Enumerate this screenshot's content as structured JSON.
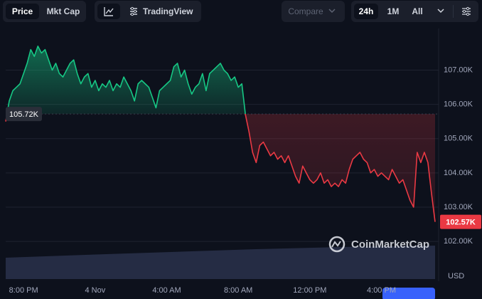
{
  "toolbar": {
    "price": "Price",
    "mkt_cap": "Mkt Cap",
    "tradingview": "TradingView",
    "compare": "Compare",
    "ranges": [
      "24h",
      "1M",
      "All"
    ]
  },
  "chart_data": {
    "type": "line",
    "categories": [
      null,
      null,
      null,
      null,
      null,
      "8:00 PM",
      null,
      null,
      null,
      null,
      null,
      null,
      null,
      null,
      null,
      null,
      null,
      null,
      null,
      null,
      null,
      null,
      null,
      null,
      null,
      "4 Nov",
      null,
      null,
      null,
      null,
      null,
      null,
      null,
      null,
      null,
      null,
      null,
      null,
      null,
      null,
      null,
      null,
      null,
      null,
      null,
      "4:00 AM",
      null,
      null,
      null,
      null,
      null,
      null,
      null,
      null,
      null,
      null,
      null,
      null,
      null,
      null,
      null,
      null,
      null,
      null,
      null,
      "8:00 AM",
      null,
      null,
      null,
      null,
      null,
      null,
      null,
      null,
      null,
      null,
      null,
      null,
      null,
      null,
      null,
      null,
      null,
      null,
      null,
      "12:00 PM",
      null,
      null,
      null,
      null,
      null,
      null,
      null,
      null,
      null,
      null,
      null,
      null,
      null,
      null,
      null,
      null,
      null,
      null,
      null,
      "4:00 PM",
      null,
      null,
      null,
      null,
      null,
      null,
      null,
      null,
      null,
      null,
      null,
      null,
      null,
      null,
      null
    ],
    "values": [
      105.5,
      106.1,
      106.4,
      106.5,
      106.6,
      106.9,
      107.2,
      107.6,
      107.4,
      107.7,
      107.5,
      107.6,
      107.3,
      107.0,
      107.2,
      106.9,
      106.8,
      107.0,
      107.2,
      107.3,
      106.9,
      106.6,
      106.8,
      106.9,
      106.5,
      106.7,
      106.4,
      106.6,
      106.5,
      106.7,
      106.4,
      106.6,
      106.5,
      106.8,
      106.6,
      106.4,
      106.1,
      106.6,
      106.7,
      106.6,
      106.5,
      106.2,
      105.9,
      106.4,
      106.5,
      106.6,
      106.7,
      107.1,
      107.2,
      106.8,
      107.0,
      106.6,
      106.3,
      106.5,
      106.6,
      106.9,
      106.4,
      106.9,
      107.0,
      107.1,
      107.2,
      107.0,
      106.9,
      106.7,
      106.8,
      106.5,
      106.6,
      105.7,
      105.2,
      104.6,
      104.3,
      104.8,
      104.9,
      104.7,
      104.5,
      104.6,
      104.4,
      104.5,
      104.3,
      104.5,
      104.2,
      103.9,
      103.7,
      104.2,
      104.0,
      103.8,
      103.7,
      103.8,
      104.0,
      103.7,
      103.8,
      103.6,
      103.7,
      103.6,
      103.8,
      103.7,
      104.1,
      104.4,
      104.5,
      104.6,
      104.4,
      104.3,
      104.0,
      104.1,
      103.9,
      104.0,
      103.9,
      103.8,
      104.1,
      103.9,
      103.7,
      103.8,
      103.5,
      103.2,
      103.0,
      104.6,
      104.3,
      104.6,
      104.3,
      103.4,
      102.57
    ],
    "up_color": "#16c784",
    "down_color": "#ea3943",
    "ylim": [
      100.9,
      108.05
    ],
    "yticks": [
      {
        "value": 102,
        "label": "102.00K"
      },
      {
        "value": 103,
        "label": "103.00K"
      },
      {
        "value": 104,
        "label": "104.00K"
      },
      {
        "value": 105,
        "label": "105.00K"
      },
      {
        "value": 106,
        "label": "106.00K"
      },
      {
        "value": 107,
        "label": "107.00K"
      }
    ],
    "y_label": "USD",
    "grid": true,
    "baseline": {
      "value": 105.72,
      "label": "105.72K"
    },
    "current": {
      "value": 102.57,
      "label": "102.57K"
    },
    "watermark": "CoinMarketCap"
  }
}
